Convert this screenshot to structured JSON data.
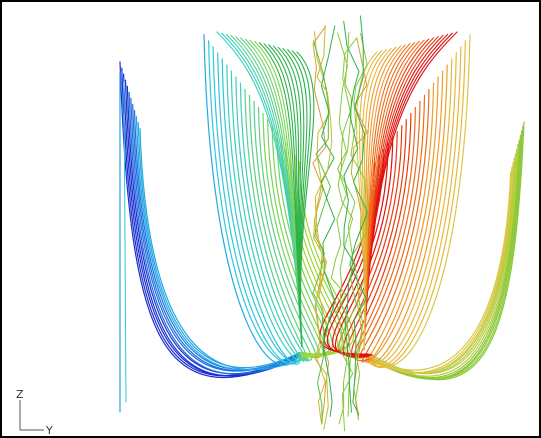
{
  "axis_triad": {
    "vertical_label": "Z",
    "horizontal_label": "Y"
  },
  "colors": {
    "left_family": [
      "#1a2fd0",
      "#1f6fe0",
      "#22a8e6",
      "#2fc7d8",
      "#3ccfb8",
      "#5ad08a",
      "#79d45a",
      "#a0d63a"
    ],
    "right_family": [
      "#e01010",
      "#e83a10",
      "#ee6a1a",
      "#f09a2a",
      "#e6b83a",
      "#d8c846",
      "#b8cc40",
      "#8cc838"
    ],
    "center_family": [
      "#2db24a",
      "#5cc040",
      "#8ac83a",
      "#c8b82e",
      "#d4a030"
    ]
  }
}
